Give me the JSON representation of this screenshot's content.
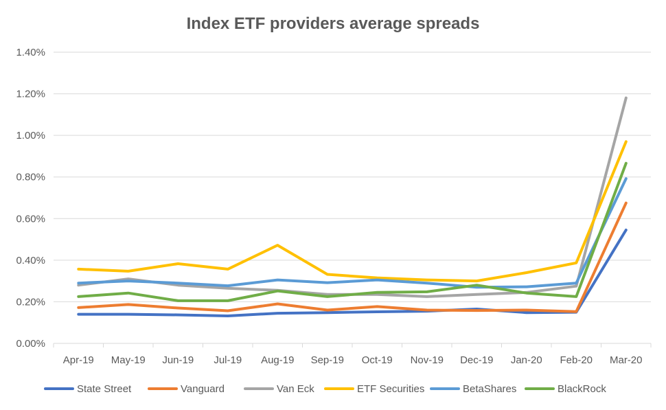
{
  "chart_data": {
    "type": "line",
    "title": "Index ETF providers average spreads",
    "xlabel": "",
    "ylabel": "",
    "categories": [
      "Apr-19",
      "May-19",
      "Jun-19",
      "Jul-19",
      "Aug-19",
      "Sep-19",
      "Oct-19",
      "Nov-19",
      "Dec-19",
      "Jan-20",
      "Feb-20",
      "Mar-20"
    ],
    "ylim": [
      0,
      1.4
    ],
    "yticks": [
      "0.00%",
      "0.20%",
      "0.40%",
      "0.60%",
      "0.80%",
      "1.00%",
      "1.20%",
      "1.40%"
    ],
    "ytick_values": [
      0,
      0.2,
      0.4,
      0.6,
      0.8,
      1.0,
      1.2,
      1.4
    ],
    "grid": true,
    "legend_position": "bottom",
    "series": [
      {
        "name": "State Street",
        "color": "#4472c4",
        "values": [
          0.14,
          0.14,
          0.137,
          0.132,
          0.145,
          0.148,
          0.152,
          0.155,
          0.165,
          0.148,
          0.15,
          0.545
        ]
      },
      {
        "name": "Vanguard",
        "color": "#ed7d31",
        "values": [
          0.172,
          0.187,
          0.17,
          0.157,
          0.19,
          0.16,
          0.177,
          0.16,
          0.158,
          0.16,
          0.153,
          0.675
        ]
      },
      {
        "name": "Van Eck",
        "color": "#a5a5a5",
        "values": [
          0.28,
          0.31,
          0.28,
          0.265,
          0.255,
          0.235,
          0.235,
          0.225,
          0.235,
          0.245,
          0.275,
          1.18
        ]
      },
      {
        "name": "ETF Securities",
        "color": "#ffc000",
        "values": [
          0.357,
          0.347,
          0.383,
          0.357,
          0.472,
          0.332,
          0.315,
          0.305,
          0.3,
          0.34,
          0.387,
          0.97
        ]
      },
      {
        "name": "BetaShares",
        "color": "#5b9bd5",
        "values": [
          0.29,
          0.3,
          0.29,
          0.277,
          0.305,
          0.292,
          0.305,
          0.29,
          0.27,
          0.272,
          0.29,
          0.792
        ]
      },
      {
        "name": "BlackRock",
        "color": "#70ad47",
        "values": [
          0.225,
          0.242,
          0.205,
          0.205,
          0.252,
          0.225,
          0.245,
          0.248,
          0.28,
          0.242,
          0.225,
          0.866
        ]
      }
    ]
  }
}
